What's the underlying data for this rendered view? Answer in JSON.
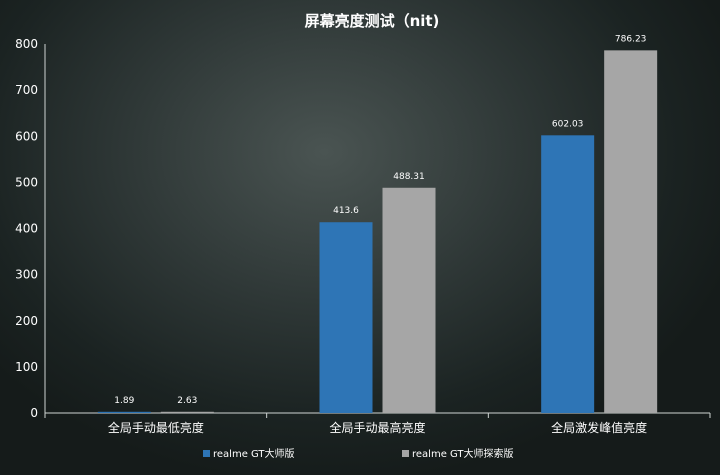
{
  "chart_data": {
    "type": "bar",
    "title": "屏幕亮度测试（nit)",
    "categories": [
      "全局手动最低亮度",
      "全局手动最高亮度",
      "全局激发峰值亮度"
    ],
    "series": [
      {
        "name": "realme GT大师版",
        "values": [
          1.89,
          413.6,
          602.03
        ],
        "color": "#2e75b6"
      },
      {
        "name": "realme GT大师探索版",
        "values": [
          2.63,
          488.31,
          786.23
        ],
        "color": "#a6a6a6"
      }
    ],
    "value_labels": [
      [
        "1.89",
        "413.6",
        "602.03"
      ],
      [
        "2.63",
        "488.31",
        "786.23"
      ]
    ],
    "ylim": [
      0,
      800
    ],
    "yticks": [
      "0",
      "100",
      "200",
      "300",
      "400",
      "500",
      "600",
      "700",
      "800"
    ],
    "xlabel": "",
    "ylabel": "",
    "grid": false,
    "legend_position": "bottom"
  }
}
